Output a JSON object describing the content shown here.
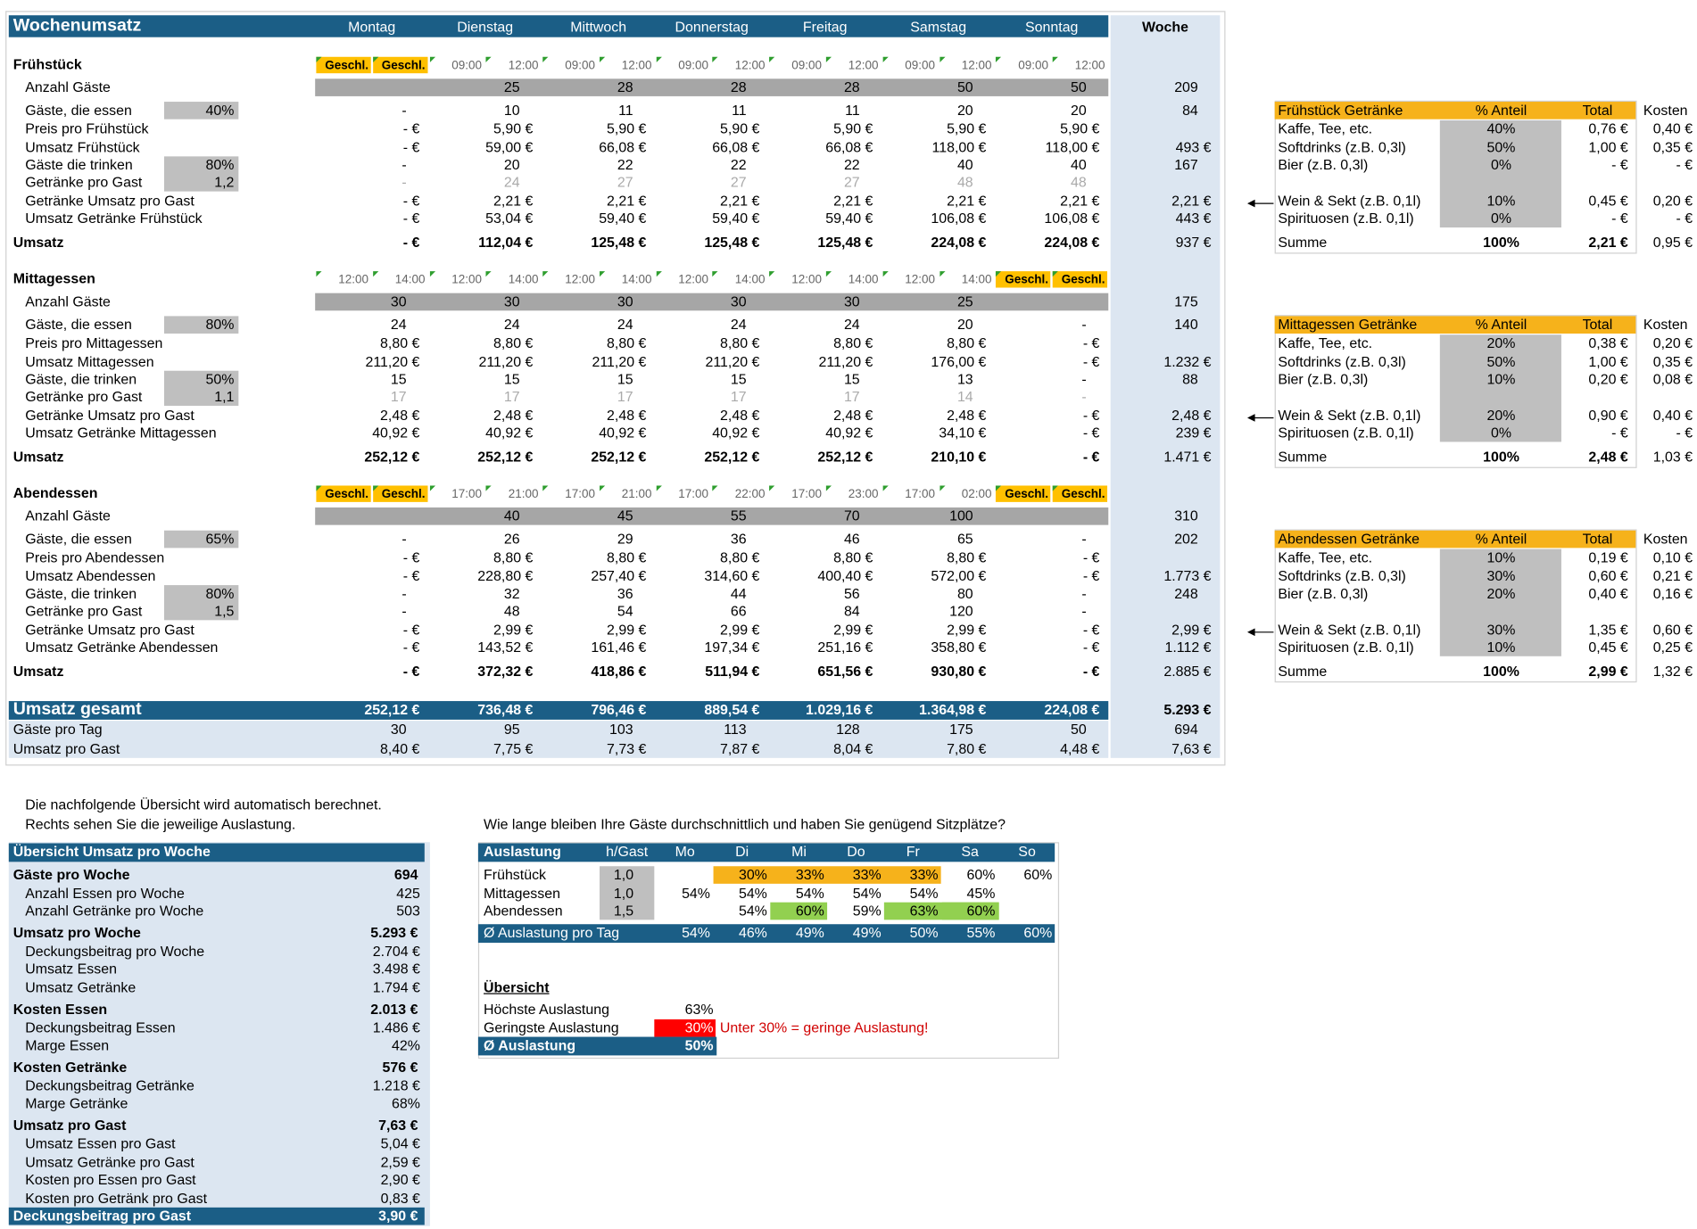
{
  "weekly": {
    "title": "Wochenumsatz",
    "days": [
      "Montag",
      "Dienstag",
      "Mittwoch",
      "Donnerstag",
      "Freitag",
      "Samstag",
      "Sonntag"
    ],
    "total_header": "Woche",
    "sections": [
      {
        "name": "Frühstück",
        "times": [
          [
            "Geschl.",
            "Geschl."
          ],
          [
            "09:00",
            "12:00"
          ],
          [
            "09:00",
            "12:00"
          ],
          [
            "09:00",
            "12:00"
          ],
          [
            "09:00",
            "12:00"
          ],
          [
            "09:00",
            "12:00"
          ],
          [
            "09:00",
            "12:00"
          ]
        ],
        "rows": [
          {
            "label": "Anzahl Gäste",
            "values": [
              null,
              "25",
              "28",
              "28",
              "28",
              "50",
              "50"
            ],
            "total": "209"
          },
          {
            "label": "Gäste, die essen",
            "param": "40%",
            "values": [
              "-",
              "10",
              "11",
              "11",
              "11",
              "20",
              "20"
            ],
            "total": "84"
          },
          {
            "label": "Preis pro Frühstück",
            "values": [
              "- €",
              "5,90 €",
              "5,90 €",
              "5,90 €",
              "5,90 €",
              "5,90 €",
              "5,90 €"
            ]
          },
          {
            "label": "Umsatz Frühstück",
            "values": [
              "- €",
              "59,00 €",
              "66,08 €",
              "66,08 €",
              "66,08 €",
              "118,00 €",
              "118,00 €"
            ],
            "total": "493 €"
          },
          {
            "label": "Gäste die trinken",
            "param": "80%",
            "values": [
              "-",
              "20",
              "22",
              "22",
              "22",
              "40",
              "40"
            ],
            "total": "167"
          },
          {
            "label": "Getränke pro Gast",
            "param": "1,2",
            "values": [
              "-",
              "24",
              "27",
              "27",
              "27",
              "48",
              "48"
            ]
          },
          {
            "label": "Getränke Umsatz pro Gast",
            "values": [
              "- €",
              "2,21 €",
              "2,21 €",
              "2,21 €",
              "2,21 €",
              "2,21 €",
              "2,21 €"
            ],
            "total": "2,21 €"
          },
          {
            "label": "Umsatz Getränke Frühstück",
            "values": [
              "- €",
              "53,04 €",
              "59,40 €",
              "59,40 €",
              "59,40 €",
              "106,08 €",
              "106,08 €"
            ],
            "total": "443 €"
          },
          {
            "label": "Umsatz",
            "values": [
              "- €",
              "112,04 €",
              "125,48 €",
              "125,48 €",
              "125,48 €",
              "224,08 €",
              "224,08 €"
            ],
            "total": "937 €"
          }
        ]
      },
      {
        "name": "Mittagessen",
        "times": [
          [
            "12:00",
            "14:00"
          ],
          [
            "12:00",
            "14:00"
          ],
          [
            "12:00",
            "14:00"
          ],
          [
            "12:00",
            "14:00"
          ],
          [
            "12:00",
            "14:00"
          ],
          [
            "12:00",
            "14:00"
          ],
          [
            "Geschl.",
            "Geschl."
          ]
        ],
        "rows": [
          {
            "label": "Anzahl Gäste",
            "values": [
              "30",
              "30",
              "30",
              "30",
              "30",
              "25",
              null
            ],
            "total": "175"
          },
          {
            "label": "Gäste, die essen",
            "param": "80%",
            "values": [
              "24",
              "24",
              "24",
              "24",
              "24",
              "20",
              "-"
            ],
            "total": "140"
          },
          {
            "label": "Preis pro Mittagessen",
            "values": [
              "8,80 €",
              "8,80 €",
              "8,80 €",
              "8,80 €",
              "8,80 €",
              "8,80 €",
              "- €"
            ]
          },
          {
            "label": "Umsatz Mittagessen",
            "values": [
              "211,20 €",
              "211,20 €",
              "211,20 €",
              "211,20 €",
              "211,20 €",
              "176,00 €",
              "- €"
            ],
            "total": "1.232 €"
          },
          {
            "label": "Gäste, die trinken",
            "param": "50%",
            "values": [
              "15",
              "15",
              "15",
              "15",
              "15",
              "13",
              "-"
            ],
            "total": "88"
          },
          {
            "label": "Getränke pro Gast",
            "param": "1,1",
            "values": [
              "17",
              "17",
              "17",
              "17",
              "17",
              "14",
              "-"
            ]
          },
          {
            "label": "Getränke Umsatz pro Gast",
            "values": [
              "2,48 €",
              "2,48 €",
              "2,48 €",
              "2,48 €",
              "2,48 €",
              "2,48 €",
              "- €"
            ],
            "total": "2,48 €"
          },
          {
            "label": "Umsatz Getränke Mittagessen",
            "values": [
              "40,92 €",
              "40,92 €",
              "40,92 €",
              "40,92 €",
              "40,92 €",
              "34,10 €",
              "- €"
            ],
            "total": "239 €"
          },
          {
            "label": "Umsatz",
            "values": [
              "252,12 €",
              "252,12 €",
              "252,12 €",
              "252,12 €",
              "252,12 €",
              "210,10 €",
              "- €"
            ],
            "total": "1.471 €"
          }
        ]
      },
      {
        "name": "Abendessen",
        "times": [
          [
            "Geschl.",
            "Geschl."
          ],
          [
            "17:00",
            "21:00"
          ],
          [
            "17:00",
            "21:00"
          ],
          [
            "17:00",
            "22:00"
          ],
          [
            "17:00",
            "23:00"
          ],
          [
            "17:00",
            "02:00"
          ],
          [
            "Geschl.",
            "Geschl."
          ]
        ],
        "rows": [
          {
            "label": "Anzahl Gäste",
            "values": [
              null,
              "40",
              "45",
              "55",
              "70",
              "100",
              null
            ],
            "total": "310"
          },
          {
            "label": "Gäste, die essen",
            "param": "65%",
            "values": [
              "-",
              "26",
              "29",
              "36",
              "46",
              "65",
              "-"
            ],
            "total": "202"
          },
          {
            "label": "Preis pro Abendessen",
            "values": [
              "- €",
              "8,80 €",
              "8,80 €",
              "8,80 €",
              "8,80 €",
              "8,80 €",
              "- €"
            ]
          },
          {
            "label": "Umsatz Abendessen",
            "values": [
              "- €",
              "228,80 €",
              "257,40 €",
              "314,60 €",
              "400,40 €",
              "572,00 €",
              "- €"
            ],
            "total": "1.773 €"
          },
          {
            "label": "Gäste, die trinken",
            "param": "80%",
            "values": [
              "-",
              "32",
              "36",
              "44",
              "56",
              "80",
              "-"
            ],
            "total": "248"
          },
          {
            "label": "Getränke pro Gast",
            "param": "1,5",
            "values": [
              "-",
              "48",
              "54",
              "66",
              "84",
              "120",
              "-"
            ]
          },
          {
            "label": "Getränke Umsatz pro Gast",
            "values": [
              "- €",
              "2,99 €",
              "2,99 €",
              "2,99 €",
              "2,99 €",
              "2,99 €",
              "- €"
            ],
            "total": "2,99 €"
          },
          {
            "label": "Umsatz Getränke Abendessen",
            "values": [
              "- €",
              "143,52 €",
              "161,46 €",
              "197,34 €",
              "251,16 €",
              "358,80 €",
              "- €"
            ],
            "total": "1.112 €"
          },
          {
            "label": "Umsatz",
            "values": [
              "- €",
              "372,32 €",
              "418,86 €",
              "511,94 €",
              "651,56 €",
              "930,80 €",
              "- €"
            ],
            "total": "2.885 €"
          }
        ]
      }
    ],
    "totals": [
      {
        "label": "Umsatz gesamt",
        "values": [
          "252,12 €",
          "736,48 €",
          "796,46 €",
          "889,54 €",
          "1.029,16 €",
          "1.364,98 €",
          "224,08 €"
        ],
        "total": "5.293 €"
      },
      {
        "label": "Gäste pro Tag",
        "values": [
          "30",
          "95",
          "103",
          "113",
          "128",
          "175",
          "50"
        ],
        "total": "694"
      },
      {
        "label": "Umsatz pro Gast",
        "values": [
          "8,40 €",
          "7,75 €",
          "7,73 €",
          "7,87 €",
          "8,04 €",
          "7,80 €",
          "4,48 €"
        ],
        "total": "7,63 €"
      }
    ]
  },
  "drinks": [
    {
      "title": "Frühstück Getränke",
      "share_header": "% Anteil",
      "total_header": "Total",
      "cost_header": "Kosten",
      "rows": [
        {
          "label": "Kaffe, Tee, etc.",
          "share": "40%",
          "total": "0,76 €",
          "cost": "0,40 €"
        },
        {
          "label": "Softdrinks (z.B. 0,3l)",
          "share": "50%",
          "total": "1,00 €",
          "cost": "0,35 €"
        },
        {
          "label": "Bier (z.B. 0,3l)",
          "share": "0%",
          "total": "- €",
          "cost": "- €"
        },
        {
          "label": "Wein & Sekt (z.B. 0,1l)",
          "share": "10%",
          "total": "0,45 €",
          "cost": "0,20 €"
        },
        {
          "label": "Spirituosen (z.B. 0,1l)",
          "share": "0%",
          "total": "- €",
          "cost": "- €"
        }
      ],
      "sum": {
        "label": "Summe",
        "share": "100%",
        "total": "2,21 €",
        "cost": "0,95 €"
      }
    },
    {
      "title": "Mittagessen Getränke",
      "share_header": "% Anteil",
      "total_header": "Total",
      "cost_header": "Kosten",
      "rows": [
        {
          "label": "Kaffe, Tee, etc.",
          "share": "20%",
          "total": "0,38 €",
          "cost": "0,20 €"
        },
        {
          "label": "Softdrinks (z.B. 0,3l)",
          "share": "50%",
          "total": "1,00 €",
          "cost": "0,35 €"
        },
        {
          "label": "Bier (z.B. 0,3l)",
          "share": "10%",
          "total": "0,20 €",
          "cost": "0,08 €"
        },
        {
          "label": "Wein & Sekt (z.B. 0,1l)",
          "share": "20%",
          "total": "0,90 €",
          "cost": "0,40 €"
        },
        {
          "label": "Spirituosen (z.B. 0,1l)",
          "share": "0%",
          "total": "- €",
          "cost": "- €"
        }
      ],
      "sum": {
        "label": "Summe",
        "share": "100%",
        "total": "2,48 €",
        "cost": "1,03 €"
      }
    },
    {
      "title": "Abendessen Getränke",
      "share_header": "% Anteil",
      "total_header": "Total",
      "cost_header": "Kosten",
      "rows": [
        {
          "label": "Kaffe, Tee, etc.",
          "share": "10%",
          "total": "0,19 €",
          "cost": "0,10 €"
        },
        {
          "label": "Softdrinks (z.B. 0,3l)",
          "share": "30%",
          "total": "0,60 €",
          "cost": "0,21 €"
        },
        {
          "label": "Bier (z.B. 0,3l)",
          "share": "20%",
          "total": "0,40 €",
          "cost": "0,16 €"
        },
        {
          "label": "Wein & Sekt (z.B. 0,1l)",
          "share": "30%",
          "total": "1,35 €",
          "cost": "0,60 €"
        },
        {
          "label": "Spirituosen (z.B. 0,1l)",
          "share": "10%",
          "total": "0,45 €",
          "cost": "0,25 €"
        }
      ],
      "sum": {
        "label": "Summe",
        "share": "100%",
        "total": "2,99 €",
        "cost": "1,32 €"
      }
    }
  ],
  "summary": {
    "intro": [
      "Die nachfolgende Übersicht wird automatisch berechnet.",
      "Rechts sehen Sie die jeweilige Auslastung."
    ],
    "title": "Übersicht Umsatz pro Woche",
    "groups": [
      {
        "label": "Gäste pro Woche",
        "value": "694",
        "items": [
          {
            "label": "Anzahl Essen pro Woche",
            "value": "425"
          },
          {
            "label": "Anzahl Getränke pro Woche",
            "value": "503"
          }
        ]
      },
      {
        "label": "Umsatz pro Woche",
        "value": "5.293 €",
        "items": [
          {
            "label": "Deckungsbeitrag pro Woche",
            "value": "2.704 €"
          },
          {
            "label": "Umsatz Essen",
            "value": "3.498 €"
          },
          {
            "label": "Umsatz Getränke",
            "value": "1.794 €"
          }
        ]
      },
      {
        "label": "Kosten Essen",
        "value": "2.013 €",
        "items": [
          {
            "label": "Deckungsbeitrag Essen",
            "value": "1.486 €"
          },
          {
            "label": "Marge Essen",
            "value": "42%"
          }
        ]
      },
      {
        "label": "Kosten Getränke",
        "value": "576 €",
        "items": [
          {
            "label": "Deckungsbeitrag Getränke",
            "value": "1.218 €"
          },
          {
            "label": "Marge Getränke",
            "value": "68%"
          }
        ]
      },
      {
        "label": "Umsatz pro Gast",
        "value": "7,63 €",
        "items": [
          {
            "label": "Umsatz Essen pro Gast",
            "value": "5,04 €"
          },
          {
            "label": "Umsatz Getränke pro Gast",
            "value": "2,59 €"
          },
          {
            "label": "Kosten pro Essen pro Gast",
            "value": "2,90 €"
          },
          {
            "label": "Kosten pro Getränk pro Gast",
            "value": "0,83 €"
          }
        ]
      }
    ],
    "footer": {
      "label": "Deckungsbeitrag pro Gast",
      "value": "3,90 €"
    }
  },
  "occupancy": {
    "question": "Wie lange bleiben Ihre Gäste durchschnittlich und haben Sie genügend Sitzplätze?",
    "header": {
      "label": "Auslastung",
      "hours": "h/Gast",
      "days": [
        "Mo",
        "Di",
        "Mi",
        "Do",
        "Fr",
        "Sa",
        "So"
      ]
    },
    "rows": [
      {
        "label": "Frühstück",
        "hours": "1,0",
        "values": [
          null,
          "30%",
          "33%",
          "33%",
          "33%",
          "60%",
          "60%"
        ]
      },
      {
        "label": "Mittagessen",
        "hours": "1,0",
        "values": [
          "54%",
          "54%",
          "54%",
          "54%",
          "54%",
          "45%",
          null
        ]
      },
      {
        "label": "Abendessen",
        "hours": "1,5",
        "values": [
          null,
          "54%",
          "60%",
          "59%",
          "63%",
          "60%",
          null
        ]
      }
    ],
    "average": {
      "label": "Ø Auslastung pro Tag",
      "values": [
        "54%",
        "46%",
        "49%",
        "49%",
        "50%",
        "55%",
        "60%"
      ]
    },
    "overview": {
      "title": "Übersicht",
      "rows": [
        {
          "label": "Höchste Auslastung",
          "value": "63%"
        },
        {
          "label": "Geringste Auslastung",
          "value": "30%"
        }
      ],
      "note": "Unter 30% = geringe Auslastung!",
      "average": {
        "label": "Ø Auslastung",
        "value": "50%"
      }
    }
  }
}
